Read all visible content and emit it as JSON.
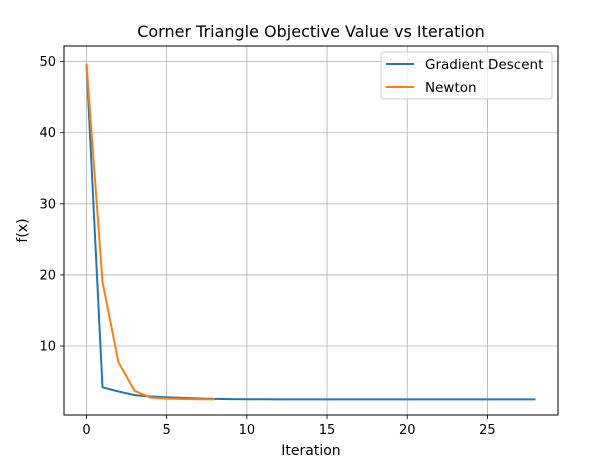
{
  "chart_data": {
    "type": "line",
    "title": "Corner Triangle Objective Value vs Iteration",
    "xlabel": "Iteration",
    "ylabel": "f(x)",
    "xlim": [
      -1.4,
      29.4
    ],
    "ylim": [
      0.3,
      52.2
    ],
    "xticks": [
      0,
      5,
      10,
      15,
      20,
      25
    ],
    "yticks": [
      10,
      20,
      30,
      40,
      50
    ],
    "grid": true,
    "legend_position": "top-right",
    "series": [
      {
        "name": "Gradient Descent",
        "color": "#1f77b4",
        "x": [
          0,
          1,
          2,
          3,
          4,
          5,
          6,
          7,
          8,
          9,
          10,
          11,
          12,
          13,
          14,
          15,
          16,
          17,
          18,
          19,
          20,
          21,
          22,
          23,
          24,
          25,
          26,
          27,
          28
        ],
        "y": [
          49.7,
          4.2,
          3.6,
          3.1,
          2.9,
          2.8,
          2.7,
          2.62,
          2.57,
          2.53,
          2.52,
          2.51,
          2.5,
          2.5,
          2.5,
          2.5,
          2.5,
          2.5,
          2.5,
          2.5,
          2.5,
          2.5,
          2.5,
          2.5,
          2.5,
          2.5,
          2.5,
          2.5,
          2.5
        ]
      },
      {
        "name": "Newton",
        "color": "#ff7f0e",
        "x": [
          0,
          1,
          2,
          3,
          4,
          5,
          6,
          7,
          8
        ],
        "y": [
          49.7,
          19.0,
          7.7,
          3.7,
          2.75,
          2.6,
          2.55,
          2.52,
          2.5
        ]
      }
    ]
  }
}
